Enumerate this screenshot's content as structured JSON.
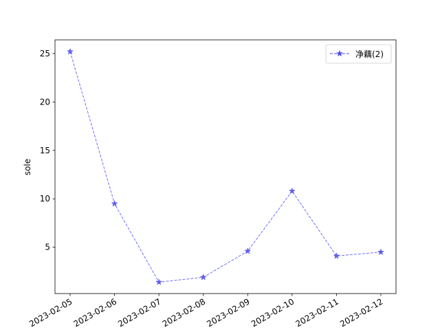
{
  "chart_data": {
    "type": "line",
    "title": "",
    "xlabel": "",
    "ylabel": "sole",
    "x": [
      "2023-02-05",
      "2023-02-06",
      "2023-02-07",
      "2023-02-08",
      "2023-02-09",
      "2023-02-10",
      "2023-02-11",
      "2023-02-12"
    ],
    "series": [
      {
        "name": "净藕(2)",
        "values": [
          25.2,
          9.5,
          1.4,
          1.9,
          4.6,
          10.8,
          4.1,
          4.5
        ],
        "color": "#4c4cf0",
        "line_style": "dashed",
        "marker": "star"
      }
    ],
    "ylim": [
      0.22,
      26.41
    ],
    "yticks": [
      5,
      10,
      15,
      20,
      25
    ],
    "grid": false,
    "legend_position": "top-right"
  }
}
